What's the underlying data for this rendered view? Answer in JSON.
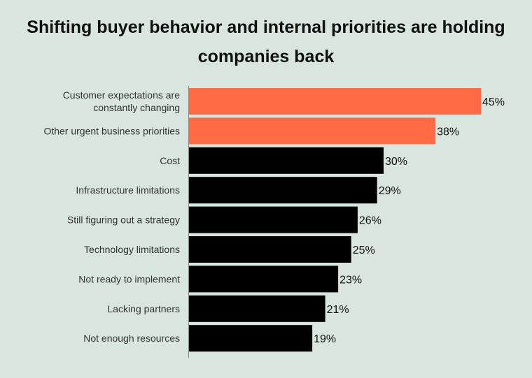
{
  "chart_data": {
    "type": "bar",
    "orientation": "horizontal",
    "title": "Shifting buyer behavior and internal priorities are holding companies back",
    "categories": [
      [
        "Customer expectations are",
        "constantly changing"
      ],
      [
        "Other urgent business priorities"
      ],
      [
        "Cost"
      ],
      [
        "Infrastructure limitations"
      ],
      [
        "Still figuring out a strategy"
      ],
      [
        "Technology limitations"
      ],
      [
        "Not ready to implement"
      ],
      [
        "Lacking partners"
      ],
      [
        "Not enough resources"
      ]
    ],
    "values": [
      45,
      38,
      30,
      29,
      26,
      25,
      23,
      21,
      19
    ],
    "value_labels": [
      "45%",
      "38%",
      "30%",
      "29%",
      "26%",
      "25%",
      "23%",
      "21%",
      "19%"
    ],
    "unit": "%",
    "highlight_count": 2,
    "colors": {
      "highlight": "#ff6b45",
      "default": "#000000",
      "background": "#d9e6e0",
      "axis": "#888888"
    },
    "xlabel": "",
    "ylabel": "",
    "grid": false,
    "legend": "none"
  }
}
